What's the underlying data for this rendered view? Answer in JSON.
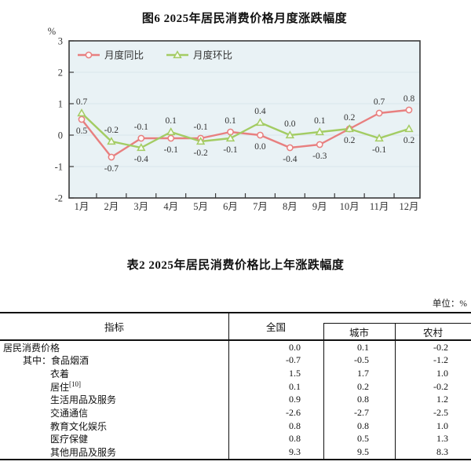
{
  "figure": {
    "title": "图6  2025年居民消费价格月度涨跌幅度"
  },
  "chart_data": {
    "type": "line",
    "title": "图6 2025年居民消费价格月度涨跌幅度",
    "ylabel": "%",
    "ylim": [
      -2,
      3
    ],
    "yticks": [
      3,
      2,
      1,
      0,
      -1,
      -2
    ],
    "grid": true,
    "legend_position": "top-left-inside",
    "plot_bg": "#e9f2f5",
    "categories": [
      "1月",
      "2月",
      "3月",
      "4月",
      "5月",
      "6月",
      "7月",
      "8月",
      "9月",
      "10月",
      "11月",
      "12月"
    ],
    "series": [
      {
        "name": "月度同比",
        "color": "#e87f7f",
        "marker": "circle",
        "values": [
          0.5,
          -0.7,
          -0.1,
          -0.1,
          -0.1,
          0.1,
          0.0,
          -0.4,
          -0.3,
          0.2,
          0.7,
          0.8
        ],
        "label_side": [
          "below",
          "below",
          "above",
          "below",
          "above",
          "above",
          "below",
          "below",
          "below",
          "above",
          "above",
          "above"
        ]
      },
      {
        "name": "月度环比",
        "color": "#a3cc63",
        "marker": "triangle",
        "values": [
          0.7,
          -0.2,
          -0.4,
          0.1,
          -0.2,
          -0.1,
          0.4,
          0.0,
          0.1,
          0.2,
          -0.1,
          0.2
        ],
        "label_side": [
          "above",
          "above",
          "below",
          "above",
          "below",
          "below",
          "above",
          "above",
          "above",
          "below",
          "below",
          "below"
        ]
      }
    ]
  },
  "table": {
    "title": "表2  2025年居民消费价格比上年涨跌幅度",
    "unit_note": "单位：%",
    "columns": [
      "指标",
      "全国",
      "城市",
      "农村"
    ],
    "rows": [
      {
        "indicator": "居民消费价格",
        "indent": 0,
        "national": "0.0",
        "city": "0.1",
        "rural": "-0.2"
      },
      {
        "indicator": "其中：食品烟酒",
        "indent": 1,
        "national": "-0.7",
        "city": "-0.5",
        "rural": "-1.2"
      },
      {
        "indicator": "衣着",
        "indent": 2,
        "national": "1.5",
        "city": "1.7",
        "rural": "1.0"
      },
      {
        "indicator": "居住",
        "sup": "[10]",
        "indent": 2,
        "national": "0.1",
        "city": "0.2",
        "rural": "-0.2"
      },
      {
        "indicator": "生活用品及服务",
        "indent": 2,
        "national": "0.9",
        "city": "0.8",
        "rural": "1.2"
      },
      {
        "indicator": "交通通信",
        "indent": 2,
        "national": "-2.6",
        "city": "-2.7",
        "rural": "-2.5"
      },
      {
        "indicator": "教育文化娱乐",
        "indent": 2,
        "national": "0.8",
        "city": "0.8",
        "rural": "1.0"
      },
      {
        "indicator": "医疗保健",
        "indent": 2,
        "national": "0.8",
        "city": "0.5",
        "rural": "1.3"
      },
      {
        "indicator": "其他用品及服务",
        "indent": 2,
        "national": "9.3",
        "city": "9.5",
        "rural": "8.3"
      }
    ]
  }
}
